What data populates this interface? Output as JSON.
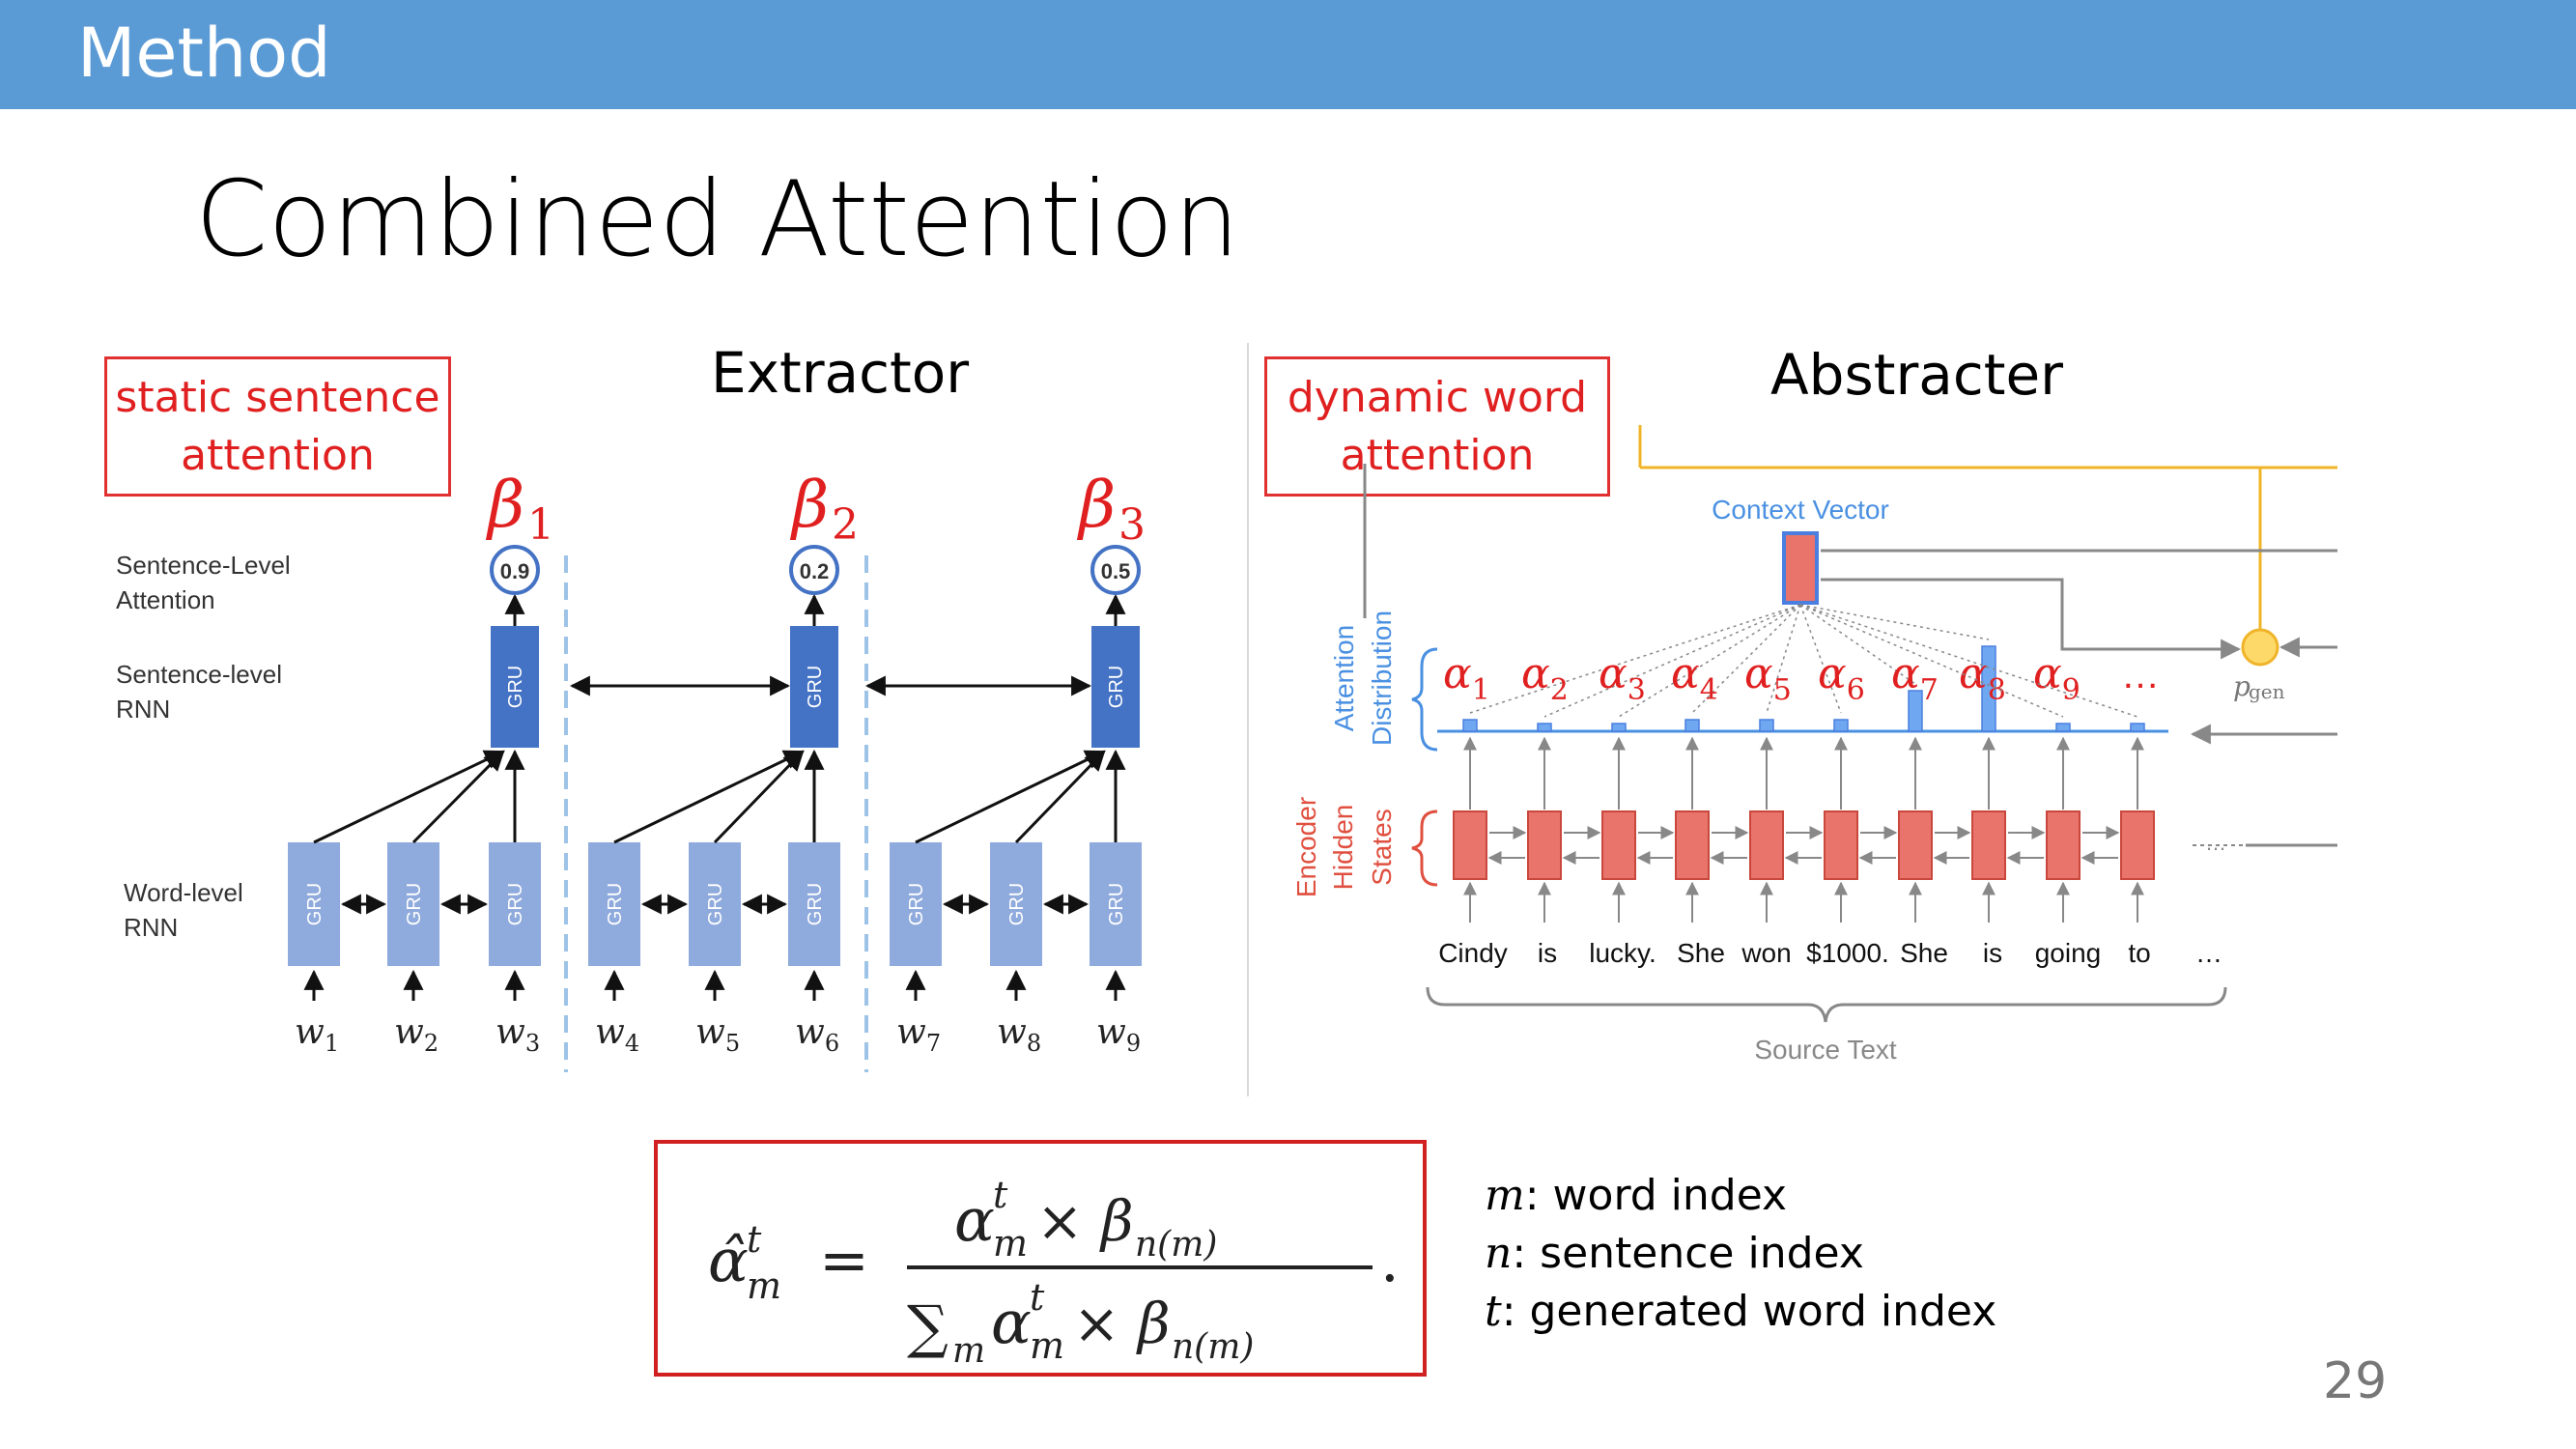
{
  "header": {
    "title": "Method"
  },
  "slide": {
    "title": "Combined Attention",
    "page_number": "29"
  },
  "extractor": {
    "label": "Extractor",
    "callout": [
      "static sentence",
      "attention"
    ],
    "row_labels": {
      "sent_attention": [
        "Sentence-Level",
        "Attention"
      ],
      "sent_rnn": [
        "Sentence-level",
        "RNN"
      ],
      "word_rnn": [
        "Word-level",
        "RNN"
      ]
    },
    "betas": [
      {
        "symbol": "β",
        "sub": "1",
        "weight": "0.9"
      },
      {
        "symbol": "β",
        "sub": "2",
        "weight": "0.2"
      },
      {
        "symbol": "β",
        "sub": "3",
        "weight": "0.5"
      }
    ],
    "gru_label": "GRU",
    "words": [
      {
        "w": "w",
        "sub": "1"
      },
      {
        "w": "w",
        "sub": "2"
      },
      {
        "w": "w",
        "sub": "3"
      },
      {
        "w": "w",
        "sub": "4"
      },
      {
        "w": "w",
        "sub": "5"
      },
      {
        "w": "w",
        "sub": "6"
      },
      {
        "w": "w",
        "sub": "7"
      },
      {
        "w": "w",
        "sub": "8"
      },
      {
        "w": "w",
        "sub": "9"
      }
    ]
  },
  "abstracter": {
    "label": "Abstracter",
    "callout": [
      "dynamic word",
      "attention"
    ],
    "context_vector": "Context Vector",
    "attention_distribution": [
      "Attention",
      "Distribution"
    ],
    "encoder_states": [
      "Encoder",
      "Hidden",
      "States"
    ],
    "pgen": "p",
    "pgen_sub": "gen",
    "alphas": [
      {
        "symbol": "α",
        "sub": "1"
      },
      {
        "symbol": "α",
        "sub": "2"
      },
      {
        "symbol": "α",
        "sub": "3"
      },
      {
        "symbol": "α",
        "sub": "4"
      },
      {
        "symbol": "α",
        "sub": "5"
      },
      {
        "symbol": "α",
        "sub": "6"
      },
      {
        "symbol": "α",
        "sub": "7"
      },
      {
        "symbol": "α",
        "sub": "8"
      },
      {
        "symbol": "α",
        "sub": "9"
      }
    ],
    "alpha_ellipsis": "…",
    "source_tokens": [
      "Cindy",
      "is",
      "lucky.",
      "She",
      "won",
      "$1000.",
      "She",
      "is",
      "going",
      "to",
      "…"
    ],
    "source_text": "Source Text",
    "state_ellipsis": "…",
    "colors": {
      "encoder": "#e8746c",
      "attention": "#6fa8f0",
      "context": "#e8746c",
      "pgen": "#fdd96a",
      "gold_line": "#f0b429"
    }
  },
  "formula": {
    "lhs": "α̂",
    "lhs_sup": "t",
    "lhs_sub": "m",
    "num": [
      "α",
      "t",
      "m",
      "× β",
      "n(m)"
    ],
    "den_sum": "∑",
    "den_sum_sub": "m",
    "den": [
      "α",
      "t",
      "m",
      "× β",
      "n(m)"
    ],
    "period": "."
  },
  "legend": [
    {
      "var": "m",
      "desc": ": word index"
    },
    {
      "var": "n",
      "desc": ": sentence index"
    },
    {
      "var": "t",
      "desc": ": generated word index"
    }
  ],
  "colors": {
    "header": "#5b9bd5",
    "gru_dark": "#4472c4",
    "gru_light": "#8faadc",
    "red": "#e02020"
  }
}
